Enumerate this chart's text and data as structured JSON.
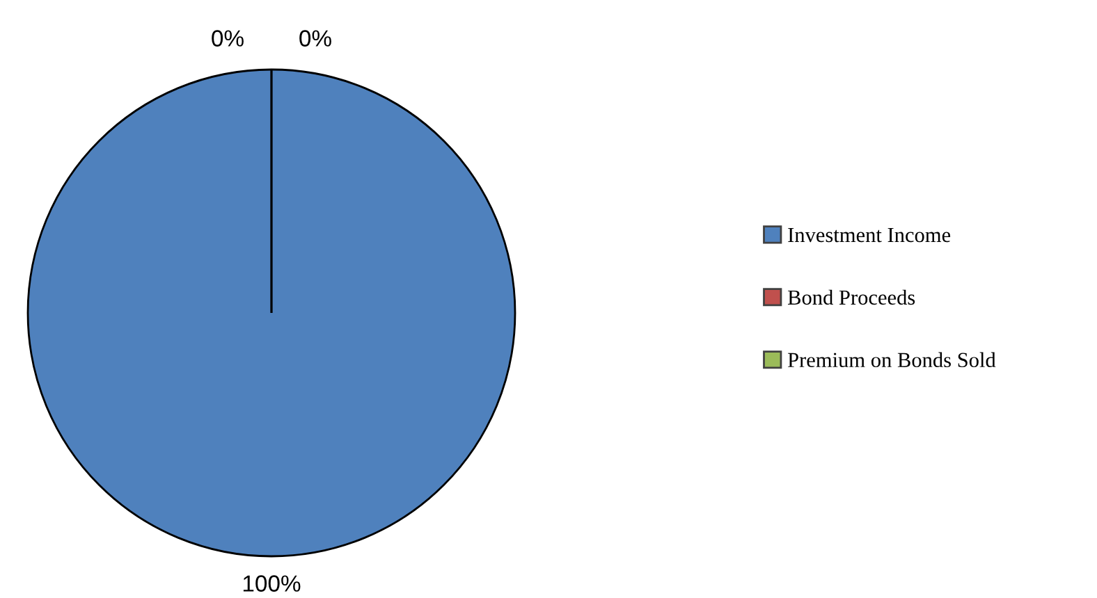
{
  "chart_data": {
    "type": "pie",
    "categories": [
      "Investment Income",
      "Bond Proceeds",
      "Premium on Bonds Sold"
    ],
    "values": [
      100,
      0,
      0
    ],
    "colors": [
      "#4f81bd",
      "#c0504d",
      "#9bbb59"
    ],
    "value_labels": [
      "100%",
      "0%",
      "0%"
    ],
    "legend": "right"
  }
}
